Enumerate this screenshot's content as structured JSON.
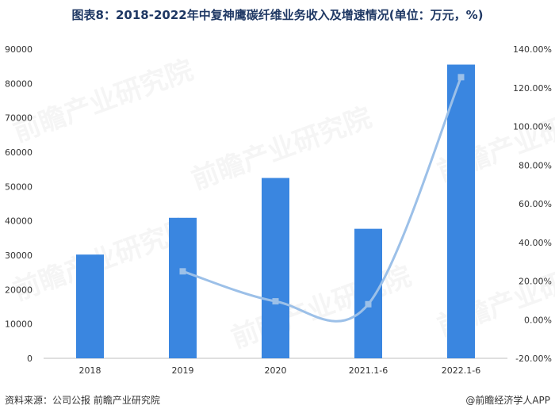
{
  "title": "图表8：2018-2022年中复神鹰碳纤维业务收入及增速情况(单位：万元，%)",
  "footer": {
    "source": "资料来源：公司公报 前瞻产业研究院",
    "brand": "@前瞻经济学人APP"
  },
  "watermark": "前瞻产业研究院",
  "chart_data": {
    "type": "bar",
    "categories": [
      "2018",
      "2019",
      "2020",
      "2021.1-6",
      "2022.1-6"
    ],
    "series": [
      {
        "type": "bar",
        "axis": "left",
        "color": "#3a86e0",
        "values": [
          30200,
          40900,
          52500,
          37700,
          85500
        ]
      },
      {
        "type": "line",
        "axis": "right",
        "color": "#9cc0e8",
        "values": [
          null,
          25.0,
          9.5,
          8.0,
          125.5
        ]
      }
    ],
    "y_left": {
      "min": 0,
      "max": 90000,
      "ticks": [
        "0",
        "10000",
        "20000",
        "30000",
        "40000",
        "50000",
        "60000",
        "70000",
        "80000",
        "90000"
      ]
    },
    "y_right": {
      "min": -20,
      "max": 140,
      "ticks": [
        "-20.00%",
        "0.00%",
        "20.00%",
        "40.00%",
        "60.00%",
        "80.00%",
        "100.00%",
        "120.00%",
        "140.00%"
      ]
    },
    "grid": false,
    "legend": "none"
  }
}
